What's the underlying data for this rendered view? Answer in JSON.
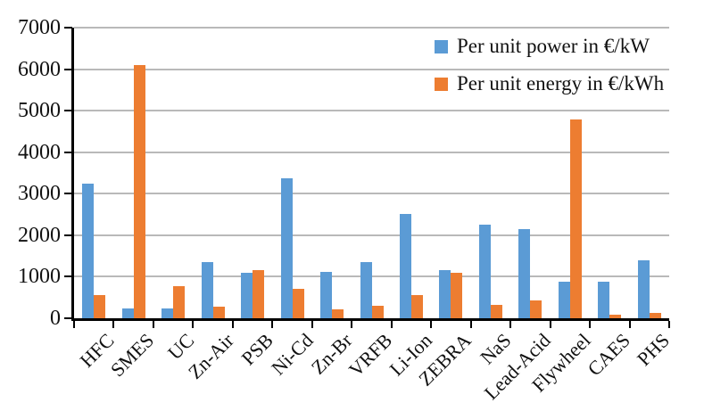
{
  "chart_data": {
    "type": "bar",
    "title": "",
    "xlabel": "",
    "ylabel": "",
    "categories": [
      "HFC",
      "SMES",
      "UC",
      "Zn-Air",
      "PSB",
      "Ni-Cd",
      "Zn-Br",
      "VRFB",
      "Li-Ion",
      "ZEBRA",
      "NaS",
      "Lead-Acid",
      "Flywheel",
      "CAES",
      "PHS"
    ],
    "series": [
      {
        "name": "Per unit power in €/kW",
        "color": "#5B9BD5",
        "values": [
          3250,
          230,
          230,
          1350,
          1090,
          3370,
          1120,
          1350,
          2520,
          1150,
          2250,
          2140,
          870,
          890,
          1390
        ]
      },
      {
        "name": "Per unit energy in €/kWh",
        "color": "#ED7D31",
        "values": [
          550,
          6100,
          780,
          270,
          1150,
          700,
          220,
          300,
          550,
          1090,
          330,
          420,
          4790,
          80,
          130
        ]
      }
    ],
    "ylim": [
      0,
      7000
    ],
    "ytick_interval": 1000,
    "ytick_labels": [
      "0",
      "1000",
      "2000",
      "3000",
      "4000",
      "5000",
      "6000",
      "7000"
    ],
    "grid": true,
    "gridline_color": "#B9B9B9",
    "axis_color": "#000000",
    "legend_position": "top-right",
    "background_color": "#FFFFFF"
  }
}
